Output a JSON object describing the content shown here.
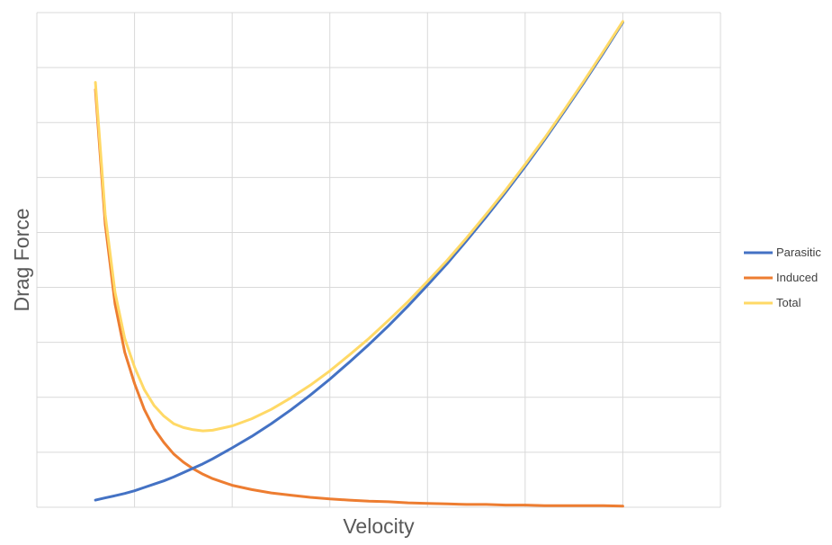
{
  "chart_data": {
    "type": "line",
    "title": "",
    "xlabel": "Velocity",
    "ylabel": "Drag Force",
    "xlim": [
      0,
      7
    ],
    "ylim": [
      0,
      9
    ],
    "grid": true,
    "legend_position": "right",
    "x": [
      0.6,
      0.7,
      0.8,
      0.9,
      1.0,
      1.1,
      1.2,
      1.3,
      1.4,
      1.5,
      1.6,
      1.7,
      1.8,
      1.9,
      2.0,
      2.2,
      2.4,
      2.6,
      2.8,
      3.0,
      3.2,
      3.4,
      3.6,
      3.8,
      4.0,
      4.2,
      4.4,
      4.6,
      4.8,
      5.0,
      5.2,
      5.4,
      5.6,
      5.8,
      6.0
    ],
    "series": [
      {
        "name": "Parasitic",
        "color": "#4472C4",
        "values": [
          0.13,
          0.17,
          0.21,
          0.25,
          0.3,
          0.36,
          0.42,
          0.48,
          0.55,
          0.63,
          0.71,
          0.79,
          0.88,
          0.98,
          1.08,
          1.29,
          1.52,
          1.77,
          2.04,
          2.33,
          2.64,
          2.96,
          3.3,
          3.66,
          4.04,
          4.43,
          4.85,
          5.28,
          5.73,
          6.2,
          6.69,
          7.2,
          7.72,
          8.26,
          8.82
        ]
      },
      {
        "name": "Induced",
        "color": "#ED7D31",
        "values": [
          7.6,
          5.15,
          3.7,
          2.82,
          2.25,
          1.78,
          1.43,
          1.18,
          0.97,
          0.82,
          0.7,
          0.6,
          0.52,
          0.46,
          0.4,
          0.32,
          0.26,
          0.22,
          0.18,
          0.15,
          0.13,
          0.11,
          0.1,
          0.08,
          0.07,
          0.06,
          0.05,
          0.05,
          0.04,
          0.04,
          0.03,
          0.03,
          0.03,
          0.03,
          0.02
        ]
      },
      {
        "name": "Total",
        "color": "#FFD966",
        "values": [
          7.73,
          5.32,
          3.91,
          3.07,
          2.55,
          2.14,
          1.85,
          1.66,
          1.52,
          1.45,
          1.41,
          1.39,
          1.4,
          1.44,
          1.48,
          1.61,
          1.78,
          1.99,
          2.22,
          2.48,
          2.77,
          3.07,
          3.4,
          3.74,
          4.11,
          4.49,
          4.9,
          5.33,
          5.77,
          6.24,
          6.72,
          7.23,
          7.75,
          8.29,
          8.84
        ]
      }
    ]
  }
}
